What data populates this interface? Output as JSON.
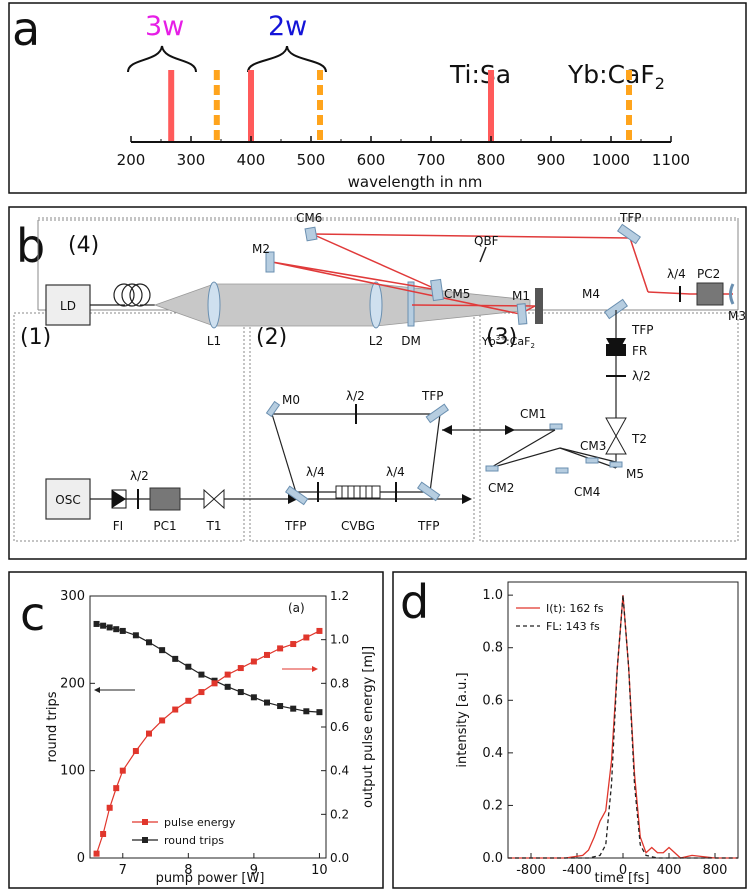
{
  "panel_a": {
    "letter": "a",
    "xlabel": "wavelength in nm",
    "ticks": [
      "200",
      "300",
      "400",
      "500",
      "600",
      "700",
      "800",
      "900",
      "1000",
      "1100"
    ],
    "labels": {
      "third": "3w",
      "second": "2w",
      "tisa": "Ti:Sa",
      "yb": "Yb:CaF",
      "yb_sub": "2"
    },
    "colors": {
      "third": "#e61ee6",
      "second": "#1414d8",
      "red": "#ff5a5a",
      "orange": "#ffa41c"
    }
  },
  "panel_b": {
    "letter": "b",
    "sections": [
      "(4)",
      "(1)",
      "(2)",
      "(3)"
    ],
    "labels": {
      "cm6": "CM6",
      "qbf": "QBF",
      "tfp_top": "TFP",
      "m2": "M2",
      "cm5": "CM5",
      "m1": "M1",
      "lambda4_top": "λ/4",
      "pc2": "PC2",
      "m4": "M4",
      "m3": "M3",
      "tfp_mid": "TFP",
      "fr": "FR",
      "lambda2_fr": "λ/2",
      "ld": "LD",
      "l1": "L1",
      "l2": "L2",
      "dm": "DM",
      "yb": "Yb",
      "yb_sup": "3+",
      "yb_rest": ":CaF",
      "yb_sub": "2",
      "t2": "T2",
      "osc": "OSC",
      "lambda2_1": "λ/2",
      "fi": "FI",
      "pc1": "PC1",
      "t1": "T1",
      "m0": "M0",
      "lambda2_2": "λ/2",
      "tfp_2a": "TFP",
      "lambda4_a": "λ/4",
      "lambda4_b": "λ/4",
      "tfp_2b": "TFP",
      "cvbg": "CVBG",
      "tfp_2c": "TFP",
      "cm1": "CM1",
      "cm3": "CM3",
      "m5": "M5",
      "cm2": "CM2",
      "cm4": "CM4"
    }
  },
  "panel_c": {
    "letter": "c",
    "annotation": "(a)",
    "xlabel": "pump power [W]",
    "ylabel_left": "round trips",
    "ylabel_right": "output pulse energy [mJ]",
    "x_ticks": [
      "7",
      "8",
      "9",
      "10"
    ],
    "y_left_ticks": [
      "0",
      "100",
      "200",
      "300"
    ],
    "y_right_ticks": [
      "0.0",
      "0.2",
      "0.4",
      "0.6",
      "0.8",
      "1.0",
      "1.2"
    ]
  },
  "panel_d": {
    "letter": "d",
    "xlabel": "time [fs]",
    "ylabel": "intensity [a.u.]",
    "x_ticks": [
      "-800",
      "-400",
      "0",
      "400",
      "800"
    ],
    "y_ticks": [
      "0.0",
      "0.2",
      "0.4",
      "0.6",
      "0.8",
      "1.0"
    ]
  },
  "chart_data": [
    {
      "type": "bar",
      "title": "",
      "xlabel": "wavelength in nm",
      "xlim": [
        200,
        1100
      ],
      "series": [
        {
          "name": "Ti:Sa lines",
          "x": [
            800,
            400,
            267
          ],
          "style": "solid",
          "color": "#ff5a5a"
        },
        {
          "name": "Yb:CaF2 lines",
          "x": [
            1030,
            515,
            343
          ],
          "style": "dashed",
          "color": "#ffa41c"
        }
      ]
    },
    {
      "type": "line",
      "xlabel": "pump power [W]",
      "ylabel": "round trips",
      "xlim": [
        6.5,
        10.1
      ],
      "ylim": [
        0,
        300
      ],
      "x": [
        6.6,
        6.7,
        6.8,
        6.9,
        7.0,
        7.2,
        7.4,
        7.6,
        7.8,
        8.0,
        8.2,
        8.4,
        8.6,
        8.8,
        9.0,
        9.2,
        9.4,
        9.6,
        9.8,
        10.0
      ],
      "series": [
        {
          "name": "round trips",
          "axis": "left",
          "color": "#222222",
          "values": [
            268,
            266,
            264,
            262,
            260,
            255,
            247,
            238,
            228,
            219,
            210,
            203,
            196,
            190,
            184,
            178,
            174,
            171,
            168,
            167
          ]
        },
        {
          "name": "pulse energy",
          "axis": "right",
          "color": "#e0362c",
          "ylim": [
            0,
            1.2
          ],
          "values": [
            0.02,
            0.11,
            0.23,
            0.32,
            0.4,
            0.49,
            0.57,
            0.63,
            0.68,
            0.72,
            0.76,
            0.8,
            0.84,
            0.87,
            0.9,
            0.93,
            0.96,
            0.98,
            1.01,
            1.04
          ]
        }
      ]
    },
    {
      "type": "line",
      "xlabel": "time [fs]",
      "ylabel": "intensity [a.u.]",
      "xlim": [
        -1000,
        1000
      ],
      "ylim": [
        0,
        1.05
      ],
      "series": [
        {
          "name": "I(t): 162 fs",
          "color": "#e0362c",
          "style": "solid",
          "x": [
            -1000,
            -500,
            -350,
            -300,
            -250,
            -200,
            -150,
            -100,
            -50,
            0,
            50,
            100,
            150,
            200,
            250,
            300,
            350,
            400,
            450,
            500,
            600,
            800,
            1000
          ],
          "values": [
            0,
            0,
            0.01,
            0.03,
            0.08,
            0.14,
            0.18,
            0.37,
            0.72,
            1.0,
            0.72,
            0.32,
            0.08,
            0.02,
            0.04,
            0.02,
            0.02,
            0.04,
            0.02,
            0.0,
            0.01,
            0,
            0
          ]
        },
        {
          "name": "FL: 143 fs",
          "color": "#222222",
          "style": "dashed",
          "x": [
            -1000,
            -300,
            -200,
            -150,
            -100,
            -50,
            0,
            50,
            100,
            150,
            200,
            300,
            1000
          ],
          "values": [
            0,
            0,
            0.01,
            0.05,
            0.28,
            0.72,
            1.0,
            0.72,
            0.28,
            0.05,
            0.01,
            0,
            0
          ]
        }
      ]
    }
  ]
}
